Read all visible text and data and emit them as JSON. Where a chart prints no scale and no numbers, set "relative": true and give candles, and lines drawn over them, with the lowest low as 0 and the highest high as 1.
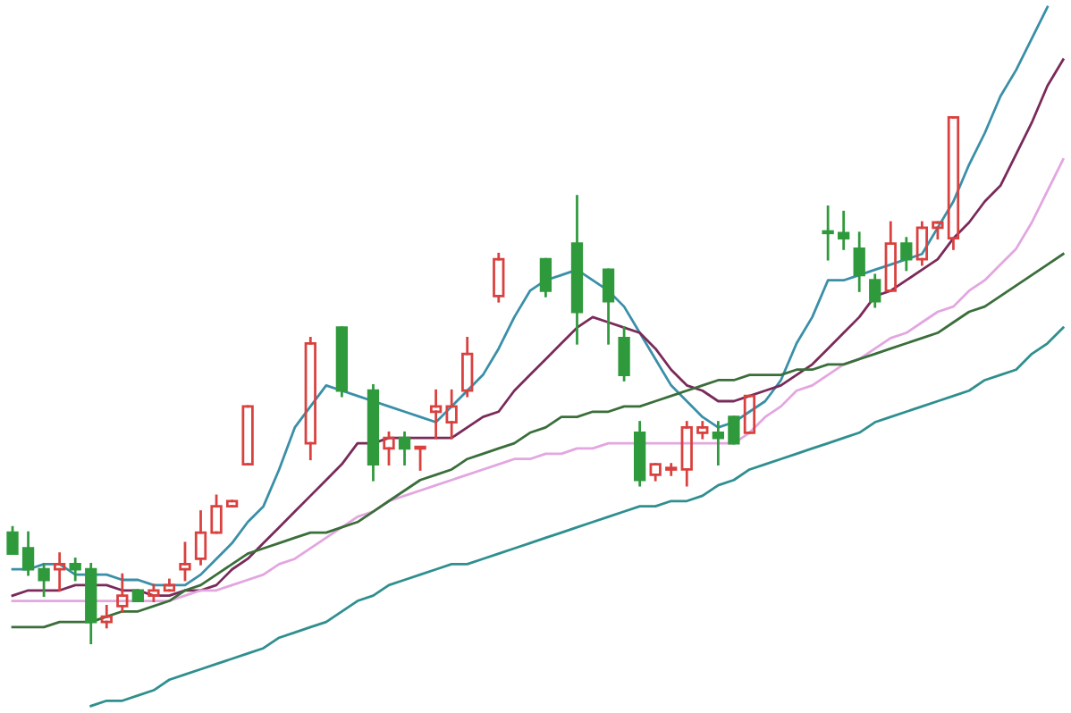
{
  "chart_data": {
    "type": "candlestick",
    "relative": true,
    "colors": [
      "#2f9a3c",
      "#2f9a3c",
      "#2f9a3c",
      "#d9413f",
      "#2f9a3c",
      "#2f9a3c",
      "#d9413f",
      "#d9413f",
      "#2f9a3c",
      "#d9413f",
      "#d9413f",
      "#d9413f",
      "#d9413f",
      "#d9413f",
      "#d9413f",
      "#d9413f",
      null,
      null,
      null,
      "#d9413f",
      null,
      "#2f9a3c",
      null,
      "#2f9a3c",
      "#d9413f",
      "#2f9a3c",
      "#d9413f",
      "#d9413f",
      "#d9413f",
      "#d9413f",
      null,
      "#d9413f",
      null,
      null,
      "#2f9a3c",
      null,
      "#2f9a3c",
      null,
      "#2f9a3c",
      "#2f9a3c",
      "#2f9a3c",
      "#d9413f",
      "#d9413f",
      "#d9413f",
      "#d9413f",
      "#2f9a3c",
      "#2f9a3c",
      "#d9413f",
      null,
      null,
      null,
      null,
      "#2f9a3c",
      "#2f9a3c",
      "#2f9a3c",
      "#2f9a3c",
      "#d9413f",
      "#2f9a3c",
      "#d9413f",
      "#d9413f",
      "#d9413f",
      null,
      null,
      null,
      null,
      null,
      null,
      null
    ],
    "categories": [
      null,
      null,
      null,
      null,
      null,
      null,
      null,
      null,
      null,
      null,
      null,
      null,
      null,
      null,
      null,
      null,
      null,
      null,
      null,
      null,
      null,
      null,
      null,
      null,
      null,
      null,
      null,
      null,
      null,
      null,
      null,
      null,
      null,
      null,
      null,
      null,
      null,
      null,
      null,
      null,
      null,
      null,
      null,
      null,
      null,
      null,
      null,
      null,
      null,
      null,
      null,
      null,
      null,
      null,
      null,
      null,
      null,
      null,
      null,
      null,
      null,
      null,
      null,
      null,
      null,
      null,
      null,
      null
    ],
    "ohlc": [
      [
        0.21,
        0.22,
        0.17,
        0.17
      ],
      [
        0.18,
        0.21,
        0.13,
        0.14
      ],
      [
        0.14,
        0.15,
        0.09,
        0.12
      ],
      [
        0.14,
        0.17,
        0.1,
        0.15
      ],
      [
        0.15,
        0.16,
        0.12,
        0.14
      ],
      [
        0.14,
        0.15,
        0,
        0.04
      ],
      [
        0.04,
        0.07,
        0.03,
        0.05
      ],
      [
        0.07,
        0.13,
        0.06,
        0.09
      ],
      [
        0.1,
        0.1,
        0.08,
        0.08
      ],
      [
        0.09,
        0.11,
        0.08,
        0.1
      ],
      [
        0.1,
        0.12,
        0.1,
        0.11
      ],
      [
        0.14,
        0.19,
        0.12,
        0.15
      ],
      [
        0.16,
        0.25,
        0.15,
        0.21
      ],
      [
        0.21,
        0.28,
        0.21,
        0.26
      ],
      [
        0.26,
        0.27,
        0.26,
        0.27
      ],
      [
        0.34,
        0.45,
        0.34,
        0.45
      ],
      null,
      null,
      null,
      [
        0.38,
        0.58,
        0.35,
        0.57
      ],
      null,
      [
        0.6,
        0.6,
        0.47,
        0.48
      ],
      null,
      [
        0.48,
        0.49,
        0.31,
        0.34
      ],
      [
        0.37,
        0.4,
        0.34,
        0.39
      ],
      [
        0.39,
        0.4,
        0.34,
        0.37
      ],
      [
        0.37,
        0.37,
        0.33,
        0.37
      ],
      [
        0.44,
        0.48,
        0.39,
        0.45
      ],
      [
        0.42,
        0.48,
        0.39,
        0.45
      ],
      [
        0.48,
        0.58,
        0.47,
        0.55
      ],
      null,
      [
        0.66,
        0.74,
        0.65,
        0.73
      ],
      null,
      null,
      [
        0.73,
        0.73,
        0.66,
        0.67
      ],
      null,
      [
        0.76,
        0.85,
        0.57,
        0.63
      ],
      null,
      [
        0.71,
        0.71,
        0.57,
        0.65
      ],
      [
        0.58,
        0.6,
        0.5,
        0.51
      ],
      [
        0.4,
        0.42,
        0.3,
        0.31
      ],
      [
        0.32,
        0.34,
        0.31,
        0.34
      ],
      [
        0.33,
        0.34,
        0.32,
        0.33
      ],
      [
        0.33,
        0.42,
        0.3,
        0.41
      ],
      [
        0.4,
        0.42,
        0.39,
        0.41
      ],
      [
        0.4,
        0.42,
        0.34,
        0.39
      ],
      [
        0.43,
        0.43,
        0.38,
        0.38
      ],
      [
        0.4,
        0.47,
        0.4,
        0.47
      ],
      null,
      null,
      null,
      null,
      [
        0.78,
        0.83,
        0.73,
        0.78
      ],
      [
        0.78,
        0.82,
        0.75,
        0.77
      ],
      [
        0.75,
        0.78,
        0.67,
        0.7
      ],
      [
        0.69,
        0.7,
        0.64,
        0.65
      ],
      [
        0.67,
        0.8,
        0.67,
        0.76
      ],
      [
        0.76,
        0.77,
        0.71,
        0.73
      ],
      [
        0.73,
        0.8,
        0.72,
        0.79
      ],
      [
        0.79,
        0.8,
        0.77,
        0.8
      ],
      [
        0.77,
        1.0,
        0.75,
        1.0
      ],
      null,
      null,
      null,
      null,
      null,
      null,
      null
    ],
    "series": [
      {
        "type": "line",
        "color": "#3a8fa8",
        "values": [
          0.14,
          0.14,
          0.15,
          0.15,
          0.13,
          0.13,
          0.13,
          0.12,
          0.12,
          0.11,
          0.11,
          0.11,
          0.13,
          0.16,
          0.19,
          0.23,
          0.26,
          0.33,
          0.41,
          0.45,
          0.49,
          0.48,
          0.47,
          0.46,
          0.45,
          0.44,
          0.43,
          0.42,
          0.45,
          0.48,
          0.51,
          0.56,
          0.62,
          0.67,
          0.69,
          0.7,
          0.71,
          0.69,
          0.67,
          0.64,
          0.59,
          0.54,
          0.49,
          0.46,
          0.43,
          0.41,
          0.42,
          0.44,
          0.46,
          0.5,
          0.57,
          0.62,
          0.69,
          0.69,
          0.7,
          0.71,
          0.72,
          0.73,
          0.74,
          0.79,
          0.84,
          0.91,
          0.97,
          1.04,
          1.09,
          1.15,
          1.21,
          null
        ]
      },
      {
        "type": "line",
        "color": "#7a2a5a",
        "values": [
          0.09,
          0.1,
          0.1,
          0.1,
          0.11,
          0.11,
          0.11,
          0.1,
          0.1,
          0.09,
          0.09,
          0.1,
          0.1,
          0.11,
          0.14,
          0.16,
          0.19,
          0.22,
          0.25,
          0.28,
          0.31,
          0.34,
          0.38,
          0.38,
          0.39,
          0.39,
          0.39,
          0.39,
          0.39,
          0.41,
          0.43,
          0.44,
          0.48,
          0.51,
          0.54,
          0.57,
          0.6,
          0.62,
          0.61,
          0.6,
          0.59,
          0.56,
          0.52,
          0.49,
          0.48,
          0.46,
          0.46,
          0.47,
          0.48,
          0.49,
          0.51,
          0.53,
          0.56,
          0.59,
          0.62,
          0.66,
          0.67,
          0.69,
          0.71,
          0.73,
          0.77,
          0.8,
          0.84,
          0.87,
          0.93,
          0.99,
          1.06,
          1.11
        ]
      },
      {
        "type": "line",
        "color": "#e3a6e0",
        "values": [
          0.08,
          0.08,
          0.08,
          0.08,
          0.08,
          0.08,
          0.08,
          0.08,
          0.08,
          0.08,
          0.08,
          0.09,
          0.1,
          0.1,
          0.11,
          0.12,
          0.13,
          0.15,
          0.16,
          0.18,
          0.2,
          0.22,
          0.24,
          0.25,
          0.27,
          0.28,
          0.29,
          0.3,
          0.31,
          0.32,
          0.33,
          0.34,
          0.35,
          0.35,
          0.36,
          0.36,
          0.37,
          0.37,
          0.38,
          0.38,
          0.38,
          0.38,
          0.38,
          0.38,
          0.38,
          0.38,
          0.38,
          0.4,
          0.43,
          0.45,
          0.48,
          0.49,
          0.51,
          0.53,
          0.54,
          0.56,
          0.58,
          0.59,
          0.61,
          0.63,
          0.64,
          0.67,
          0.69,
          0.72,
          0.75,
          0.8,
          0.86,
          0.92
        ]
      },
      {
        "type": "line",
        "color": "#3a6e3a",
        "values": [
          0.03,
          0.03,
          0.03,
          0.04,
          0.04,
          0.04,
          0.05,
          0.06,
          0.06,
          0.07,
          0.08,
          0.1,
          0.11,
          0.13,
          0.15,
          0.17,
          0.18,
          0.19,
          0.2,
          0.21,
          0.21,
          0.22,
          0.23,
          0.25,
          0.27,
          0.29,
          0.31,
          0.32,
          0.33,
          0.35,
          0.36,
          0.37,
          0.38,
          0.4,
          0.41,
          0.43,
          0.43,
          0.44,
          0.44,
          0.45,
          0.45,
          0.46,
          0.47,
          0.48,
          0.49,
          0.5,
          0.5,
          0.51,
          0.51,
          0.51,
          0.52,
          0.52,
          0.53,
          0.53,
          0.54,
          0.55,
          0.56,
          0.57,
          0.58,
          0.59,
          0.61,
          0.63,
          0.64,
          0.66,
          0.68,
          0.7,
          0.72,
          0.74
        ]
      },
      {
        "type": "line",
        "color": "#2f8f8f",
        "values": [
          null,
          null,
          null,
          null,
          null,
          -0.12,
          -0.11,
          -0.11,
          -0.1,
          -0.09,
          -0.07,
          -0.06,
          -0.05,
          -0.04,
          -0.03,
          -0.02,
          -0.01,
          0.01,
          0.02,
          0.03,
          0.04,
          0.06,
          0.08,
          0.09,
          0.11,
          0.12,
          0.13,
          0.14,
          0.15,
          0.15,
          0.16,
          0.17,
          0.18,
          0.19,
          0.2,
          0.21,
          0.22,
          0.23,
          0.24,
          0.25,
          0.26,
          0.26,
          0.27,
          0.27,
          0.28,
          0.3,
          0.31,
          0.33,
          0.34,
          0.35,
          0.36,
          0.37,
          0.38,
          0.39,
          0.4,
          0.42,
          0.43,
          0.44,
          0.45,
          0.46,
          0.47,
          0.48,
          0.5,
          0.51,
          0.52,
          0.55,
          0.57,
          0.6
        ]
      }
    ]
  }
}
